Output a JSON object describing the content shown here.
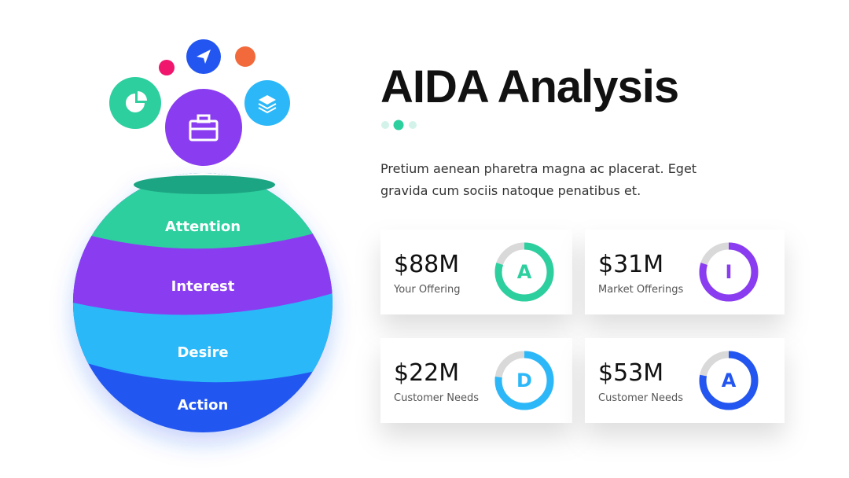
{
  "title": "AIDA Analysis",
  "description": [
    "Pretium aenean pharetra magna ac placerat. Eget",
    "gravida cum sociis natoque penatibus et."
  ],
  "layers": [
    "Attention",
    "Interest",
    "Desire",
    "Action"
  ],
  "cards": [
    {
      "value": "$88M",
      "label": "Your Offering",
      "letter": "A",
      "color": "#2dcf9f",
      "progress": 80
    },
    {
      "value": "$31M",
      "label": "Market Offerings",
      "letter": "I",
      "color": "#8a3cf0",
      "progress": 80
    },
    {
      "value": "$22M",
      "label": "Customer Needs",
      "letter": "D",
      "color": "#2cb8f8",
      "progress": 77
    },
    {
      "value": "$53M",
      "label": "Customer Needs",
      "letter": "A",
      "color": "#2356f0",
      "progress": 78
    }
  ]
}
